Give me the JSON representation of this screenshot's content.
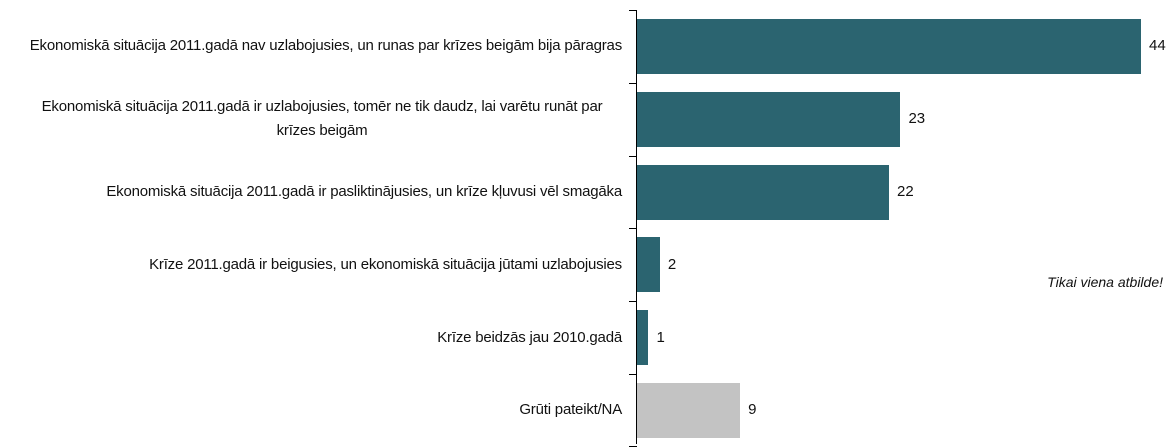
{
  "chart_data": {
    "type": "bar",
    "orientation": "horizontal",
    "categories": [
      "Ekonomiskā situācija 2011.gadā nav uzlabojusies, un runas par krīzes beigām bija pāragras",
      "Ekonomiskā situācija 2011.gadā ir uzlabojusies, tomēr ne tik daudz, lai varētu runāt par krīzes beigām",
      "Ekonomiskā situācija 2011.gadā ir pasliktinājusies, un krīze kļuvusi vēl smagāka",
      "Krīze 2011.gadā ir beigusies, un ekonomiskā situācija jūtami uzlabojusies",
      "Krīze beidzās jau 2010.gadā",
      "Grūti pateikt/NA"
    ],
    "values": [
      44,
      23,
      22,
      2,
      1,
      9
    ],
    "colors": [
      "#2b6470",
      "#2b6470",
      "#2b6470",
      "#2b6470",
      "#2b6470",
      "#c3c3c3"
    ],
    "annotation": "Tikai viena atbilde!"
  }
}
